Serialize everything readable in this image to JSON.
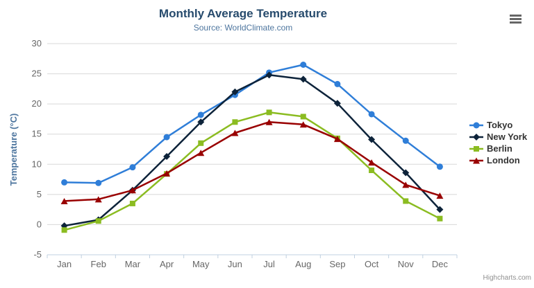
{
  "header": {
    "title": "Monthly Average Temperature",
    "subtitle": "Source: WorldClimate.com"
  },
  "credits": {
    "label": "Highcharts.com"
  },
  "export_menu": {
    "icon": "hamburger-menu-icon"
  },
  "theme": {
    "background": "#ffffff",
    "title_color": "#274b6d",
    "subtitle_color": "#4d759e",
    "axis_label_color": "#666666",
    "axis_title_color": "#4d759e",
    "grid_color": "#d8d8d8",
    "axis_line_color": "#c0d0e0",
    "legend_text_color": "#333333",
    "credits_color": "#909090",
    "icon_color": "#666666"
  },
  "chart_data": {
    "type": "line",
    "title": "Monthly Average Temperature",
    "subtitle": "Source: WorldClimate.com",
    "xlabel": "",
    "ylabel": "Temperature (°C)",
    "categories": [
      "Jan",
      "Feb",
      "Mar",
      "Apr",
      "May",
      "Jun",
      "Jul",
      "Aug",
      "Sep",
      "Oct",
      "Nov",
      "Dec"
    ],
    "ylim": [
      -5,
      30
    ],
    "yticks": [
      -5,
      0,
      5,
      10,
      15,
      20,
      25,
      30
    ],
    "grid": true,
    "legend_position": "right",
    "series": [
      {
        "name": "Tokyo",
        "color": "#2f7ed8",
        "marker": "circle",
        "values": [
          7.0,
          6.9,
          9.5,
          14.5,
          18.2,
          21.5,
          25.2,
          26.5,
          23.3,
          18.3,
          13.9,
          9.6
        ]
      },
      {
        "name": "New York",
        "color": "#0d233a",
        "marker": "diamond",
        "values": [
          -0.2,
          0.8,
          5.7,
          11.3,
          17.0,
          22.0,
          24.8,
          24.1,
          20.1,
          14.1,
          8.6,
          2.5
        ]
      },
      {
        "name": "Berlin",
        "color": "#8bbc21",
        "marker": "square",
        "values": [
          -0.9,
          0.6,
          3.5,
          8.4,
          13.5,
          17.0,
          18.6,
          17.9,
          14.3,
          9.0,
          3.9,
          1.0
        ]
      },
      {
        "name": "London",
        "color": "#990000",
        "marker": "triangle",
        "values": [
          3.9,
          4.2,
          5.7,
          8.5,
          11.9,
          15.2,
          17.0,
          16.6,
          14.2,
          10.3,
          6.6,
          4.8
        ]
      }
    ]
  }
}
